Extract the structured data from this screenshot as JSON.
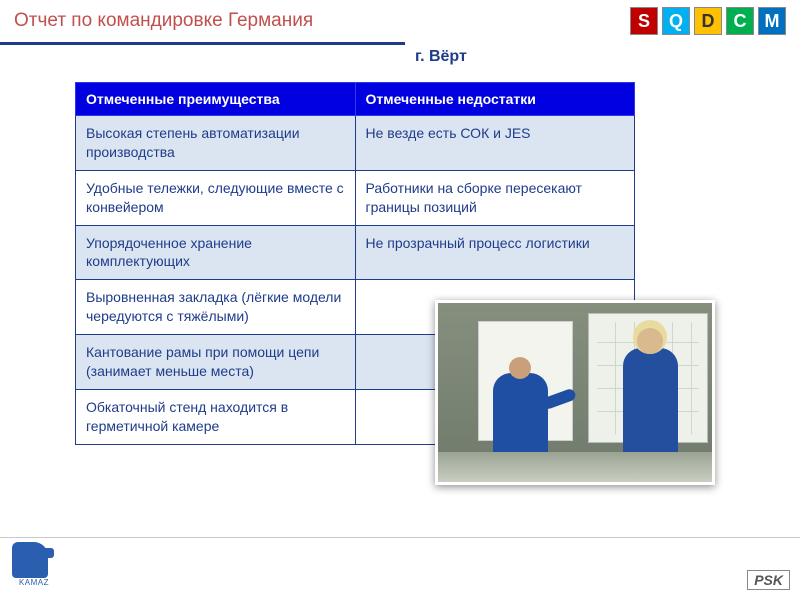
{
  "header": {
    "title": "Отчет по командировке Германия",
    "subtitle": "г. Вёрт",
    "title_color": "#c0504d",
    "underline_color": "#1f3c8a"
  },
  "sqdcm": [
    {
      "letter": "S",
      "bg": "#c00000"
    },
    {
      "letter": "Q",
      "bg": "#00b0f0"
    },
    {
      "letter": "D",
      "bg": "#ffc000"
    },
    {
      "letter": "C",
      "bg": "#00b050"
    },
    {
      "letter": "M",
      "bg": "#0070c0"
    }
  ],
  "table": {
    "header_bg": "#0000e0",
    "header_fg": "#ffffff",
    "border_color": "#1f3c8a",
    "alt_bg": "#dbe5f1",
    "text_color": "#1f3c8a",
    "columns": [
      "Отмеченные преимущества",
      "Отмеченные недостатки"
    ],
    "rows": [
      [
        "Высокая степень автоматизации производства",
        "Не везде есть СОК и JES"
      ],
      [
        "Удобные тележки, следующие вместе с конвейером",
        "Работники на сборке пересекают границы позиций"
      ],
      [
        "Упорядоченное хранение комплектующих",
        "Не прозрачный процесс логистики"
      ],
      [
        "Выровненная закладка (лёгкие модели чередуются с тяжёлыми)",
        ""
      ],
      [
        "Кантование рамы при помощи цепи (занимает меньше места)",
        ""
      ],
      [
        "Обкаточный стенд находится в герметичной камере",
        ""
      ]
    ]
  },
  "footer": {
    "left_label": "KAMAZ",
    "right_label": "PSK"
  }
}
